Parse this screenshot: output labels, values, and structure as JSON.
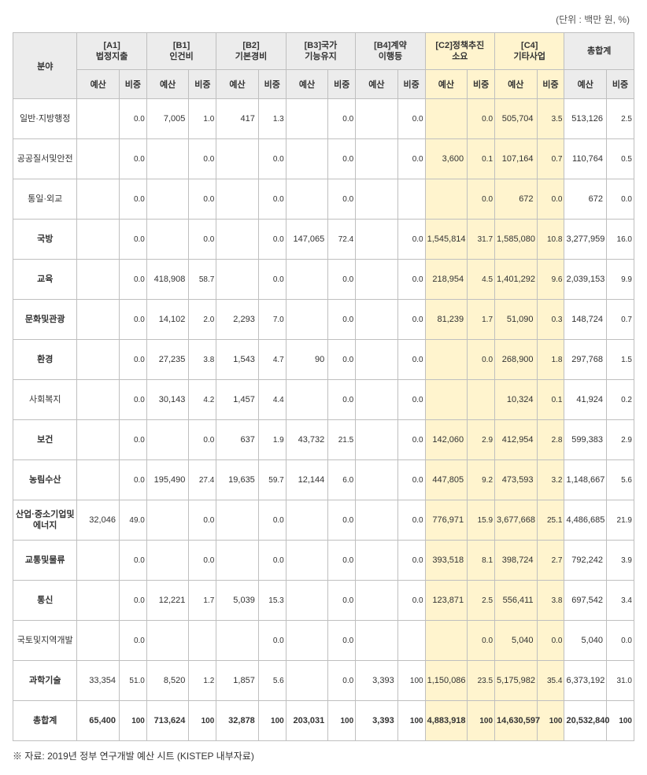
{
  "unit_note": "(단위 : 백만 원, %)",
  "source_note": "※ 자료: 2019년 정부 연구개발 예산 시트 (KISTEP 내부자료)",
  "header": {
    "category_label": "분야",
    "groups": [
      "[A1]\n법정지출",
      "[B1]\n인건비",
      "[B2]\n기본경비",
      "[B3]국가\n기능유지",
      "[B4]계약\n이행등",
      "[C2]정책추진\n소요",
      "[C4]\n기타사업",
      "총합계"
    ],
    "sub_budget": "예산",
    "sub_ratio": "비중"
  },
  "highlight_cols": [
    5,
    6
  ],
  "rows": [
    {
      "label": "일반·지방행정",
      "bold": false,
      "cells": [
        {
          "b": "",
          "r": "0.0"
        },
        {
          "b": "7,005",
          "r": "1.0"
        },
        {
          "b": "417",
          "r": "1.3"
        },
        {
          "b": "",
          "r": "0.0"
        },
        {
          "b": "",
          "r": "0.0"
        },
        {
          "b": "",
          "r": "0.0"
        },
        {
          "b": "505,704",
          "r": "3.5"
        },
        {
          "b": "513,126",
          "r": "2.5"
        }
      ]
    },
    {
      "label": "공공질서및안전",
      "bold": false,
      "cells": [
        {
          "b": "",
          "r": "0.0"
        },
        {
          "b": "",
          "r": "0.0"
        },
        {
          "b": "",
          "r": "0.0"
        },
        {
          "b": "",
          "r": "0.0"
        },
        {
          "b": "",
          "r": "0.0"
        },
        {
          "b": "3,600",
          "r": "0.1"
        },
        {
          "b": "107,164",
          "r": "0.7"
        },
        {
          "b": "110,764",
          "r": "0.5"
        }
      ]
    },
    {
      "label": "통일·외교",
      "bold": false,
      "cells": [
        {
          "b": "",
          "r": "0.0"
        },
        {
          "b": "",
          "r": "0.0"
        },
        {
          "b": "",
          "r": "0.0"
        },
        {
          "b": "",
          "r": "0.0"
        },
        {
          "b": "",
          "r": ""
        },
        {
          "b": "",
          "r": "0.0"
        },
        {
          "b": "672",
          "r": "0.0"
        },
        {
          "b": "672",
          "r": "0.0"
        }
      ]
    },
    {
      "label": "국방",
      "bold": true,
      "cells": [
        {
          "b": "",
          "r": "0.0"
        },
        {
          "b": "",
          "r": "0.0"
        },
        {
          "b": "",
          "r": "0.0"
        },
        {
          "b": "147,065",
          "r": "72.4"
        },
        {
          "b": "",
          "r": "0.0"
        },
        {
          "b": "1,545,814",
          "r": "31.7"
        },
        {
          "b": "1,585,080",
          "r": "10.8"
        },
        {
          "b": "3,277,959",
          "r": "16.0"
        }
      ]
    },
    {
      "label": "교육",
      "bold": true,
      "cells": [
        {
          "b": "",
          "r": "0.0"
        },
        {
          "b": "418,908",
          "r": "58.7"
        },
        {
          "b": "",
          "r": "0.0"
        },
        {
          "b": "",
          "r": "0.0"
        },
        {
          "b": "",
          "r": "0.0"
        },
        {
          "b": "218,954",
          "r": "4.5"
        },
        {
          "b": "1,401,292",
          "r": "9.6"
        },
        {
          "b": "2,039,153",
          "r": "9.9"
        }
      ]
    },
    {
      "label": "문화및관광",
      "bold": true,
      "cells": [
        {
          "b": "",
          "r": "0.0"
        },
        {
          "b": "14,102",
          "r": "2.0"
        },
        {
          "b": "2,293",
          "r": "7.0"
        },
        {
          "b": "",
          "r": "0.0"
        },
        {
          "b": "",
          "r": "0.0"
        },
        {
          "b": "81,239",
          "r": "1.7"
        },
        {
          "b": "51,090",
          "r": "0.3"
        },
        {
          "b": "148,724",
          "r": "0.7"
        }
      ]
    },
    {
      "label": "환경",
      "bold": true,
      "cells": [
        {
          "b": "",
          "r": "0.0"
        },
        {
          "b": "27,235",
          "r": "3.8"
        },
        {
          "b": "1,543",
          "r": "4.7"
        },
        {
          "b": "90",
          "r": "0.0"
        },
        {
          "b": "",
          "r": "0.0"
        },
        {
          "b": "",
          "r": "0.0"
        },
        {
          "b": "268,900",
          "r": "1.8"
        },
        {
          "b": "297,768",
          "r": "1.5"
        }
      ]
    },
    {
      "label": "사회복지",
      "bold": false,
      "cells": [
        {
          "b": "",
          "r": "0.0"
        },
        {
          "b": "30,143",
          "r": "4.2"
        },
        {
          "b": "1,457",
          "r": "4.4"
        },
        {
          "b": "",
          "r": "0.0"
        },
        {
          "b": "",
          "r": "0.0"
        },
        {
          "b": "",
          "r": ""
        },
        {
          "b": "10,324",
          "r": "0.1"
        },
        {
          "b": "41,924",
          "r": "0.2"
        }
      ]
    },
    {
      "label": "보건",
      "bold": true,
      "cells": [
        {
          "b": "",
          "r": "0.0"
        },
        {
          "b": "",
          "r": "0.0"
        },
        {
          "b": "637",
          "r": "1.9"
        },
        {
          "b": "43,732",
          "r": "21.5"
        },
        {
          "b": "",
          "r": "0.0"
        },
        {
          "b": "142,060",
          "r": "2.9"
        },
        {
          "b": "412,954",
          "r": "2.8"
        },
        {
          "b": "599,383",
          "r": "2.9"
        }
      ]
    },
    {
      "label": "농림수산",
      "bold": true,
      "cells": [
        {
          "b": "",
          "r": "0.0"
        },
        {
          "b": "195,490",
          "r": "27.4"
        },
        {
          "b": "19,635",
          "r": "59.7"
        },
        {
          "b": "12,144",
          "r": "6.0"
        },
        {
          "b": "",
          "r": "0.0"
        },
        {
          "b": "447,805",
          "r": "9.2"
        },
        {
          "b": "473,593",
          "r": "3.2"
        },
        {
          "b": "1,148,667",
          "r": "5.6"
        }
      ]
    },
    {
      "label": "산업·중소기업및에너지",
      "bold": true,
      "cells": [
        {
          "b": "32,046",
          "r": "49.0"
        },
        {
          "b": "",
          "r": "0.0"
        },
        {
          "b": "",
          "r": "0.0"
        },
        {
          "b": "",
          "r": "0.0"
        },
        {
          "b": "",
          "r": "0.0"
        },
        {
          "b": "776,971",
          "r": "15.9"
        },
        {
          "b": "3,677,668",
          "r": "25.1"
        },
        {
          "b": "4,486,685",
          "r": "21.9"
        }
      ]
    },
    {
      "label": "교통및물류",
      "bold": true,
      "cells": [
        {
          "b": "",
          "r": "0.0"
        },
        {
          "b": "",
          "r": "0.0"
        },
        {
          "b": "",
          "r": "0.0"
        },
        {
          "b": "",
          "r": "0.0"
        },
        {
          "b": "",
          "r": "0.0"
        },
        {
          "b": "393,518",
          "r": "8.1"
        },
        {
          "b": "398,724",
          "r": "2.7"
        },
        {
          "b": "792,242",
          "r": "3.9"
        }
      ]
    },
    {
      "label": "통신",
      "bold": true,
      "cells": [
        {
          "b": "",
          "r": "0.0"
        },
        {
          "b": "12,221",
          "r": "1.7"
        },
        {
          "b": "5,039",
          "r": "15.3"
        },
        {
          "b": "",
          "r": "0.0"
        },
        {
          "b": "",
          "r": "0.0"
        },
        {
          "b": "123,871",
          "r": "2.5"
        },
        {
          "b": "556,411",
          "r": "3.8"
        },
        {
          "b": "697,542",
          "r": "3.4"
        }
      ]
    },
    {
      "label": "국토및지역개발",
      "bold": false,
      "cells": [
        {
          "b": "",
          "r": "0.0"
        },
        {
          "b": "",
          "r": ""
        },
        {
          "b": "",
          "r": "0.0"
        },
        {
          "b": "",
          "r": "0.0"
        },
        {
          "b": "",
          "r": ""
        },
        {
          "b": "",
          "r": "0.0"
        },
        {
          "b": "5,040",
          "r": "0.0"
        },
        {
          "b": "5,040",
          "r": "0.0"
        }
      ]
    },
    {
      "label": "과학기술",
      "bold": true,
      "cells": [
        {
          "b": "33,354",
          "r": "51.0"
        },
        {
          "b": "8,520",
          "r": "1.2"
        },
        {
          "b": "1,857",
          "r": "5.6"
        },
        {
          "b": "",
          "r": "0.0"
        },
        {
          "b": "3,393",
          "r": "100"
        },
        {
          "b": "1,150,086",
          "r": "23.5"
        },
        {
          "b": "5,175,982",
          "r": "35.4"
        },
        {
          "b": "6,373,192",
          "r": "31.0"
        }
      ]
    },
    {
      "label": "총합계",
      "bold": true,
      "total": true,
      "cells": [
        {
          "b": "65,400",
          "r": "100"
        },
        {
          "b": "713,624",
          "r": "100"
        },
        {
          "b": "32,878",
          "r": "100"
        },
        {
          "b": "203,031",
          "r": "100"
        },
        {
          "b": "3,393",
          "r": "100"
        },
        {
          "b": "4,883,918",
          "r": "100"
        },
        {
          "b": "14,630,597",
          "r": "100"
        },
        {
          "b": "20,532,840",
          "r": "100"
        }
      ]
    }
  ]
}
